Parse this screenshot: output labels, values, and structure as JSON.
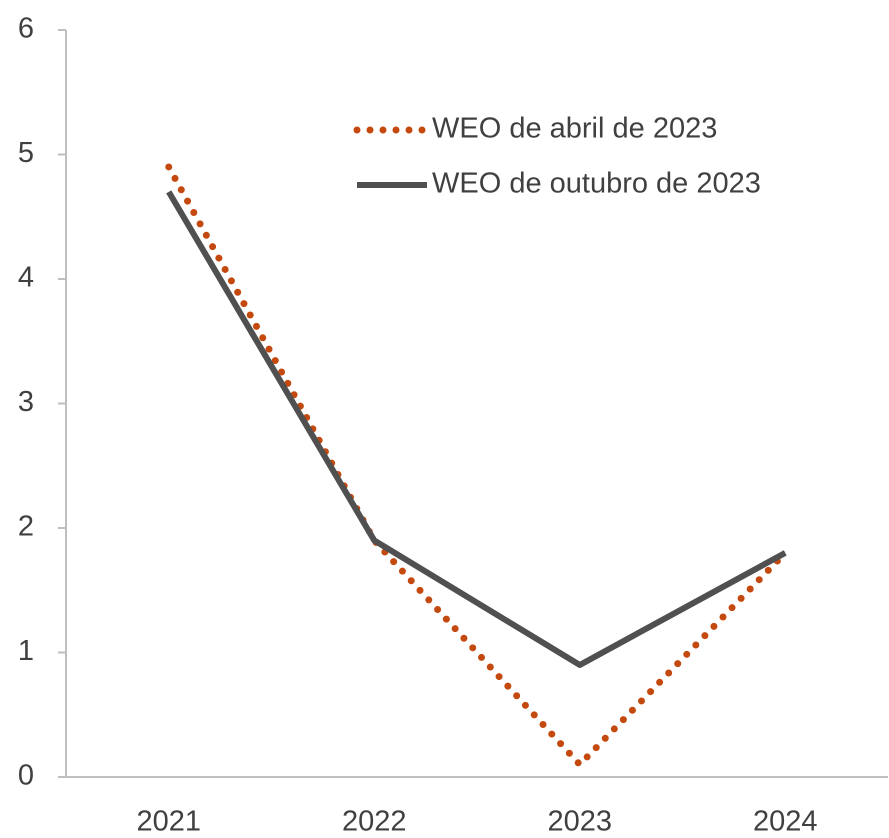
{
  "chart_data": {
    "type": "line",
    "categories": [
      "2021",
      "2022",
      "2023",
      "2024"
    ],
    "series": [
      {
        "name": "WEO de abril de 2023",
        "color": "#c4490f",
        "style": "dotted",
        "values": [
          4.9,
          1.9,
          0.1,
          1.8
        ]
      },
      {
        "name": "WEO de outubro de 2023",
        "color": "#505050",
        "style": "solid",
        "values": [
          4.7,
          1.9,
          0.9,
          1.8
        ]
      }
    ],
    "ylim": [
      0,
      6
    ],
    "yticks": [
      0,
      1,
      2,
      3,
      4,
      5,
      6
    ],
    "grid": false,
    "legend": "upper right"
  }
}
